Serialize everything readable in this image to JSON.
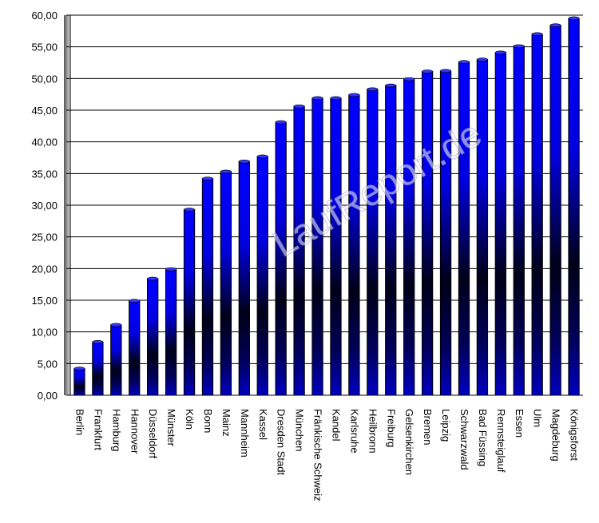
{
  "chart_data": {
    "type": "bar",
    "categories": [
      "Berlin",
      "Frankfurt",
      "Hamburg",
      "Hannover",
      "Düsseldorf",
      "Münster",
      "Köln",
      "Bonn",
      "Mainz",
      "Mannheim",
      "Kassel",
      "Dresden Stadt",
      "München",
      "Fränkische Schweiz",
      "Kandel",
      "Karlsruhe",
      "Heilbronn",
      "Freiburg",
      "Gelsenkirchen",
      "Bremen",
      "Leipzig",
      "Schwarzwald",
      "Bad Füssing",
      "Rennsteiglauf",
      "Essen",
      "Ulm",
      "Magdeburg",
      "Königsforst"
    ],
    "values": [
      4.2,
      8.4,
      11.1,
      14.9,
      18.4,
      19.9,
      29.3,
      34.2,
      35.3,
      36.9,
      37.7,
      43.1,
      45.6,
      46.9,
      46.9,
      47.4,
      48.3,
      48.9,
      49.9,
      51.1,
      51.2,
      52.6,
      53.0,
      54.1,
      55.1,
      57.0,
      58.4,
      59.5
    ],
    "color": "#0000ff",
    "ylim": [
      0,
      60
    ],
    "yticks": [
      {
        "value": 0,
        "label": "0,00"
      },
      {
        "value": 5,
        "label": "5,00"
      },
      {
        "value": 10,
        "label": "10,00"
      },
      {
        "value": 15,
        "label": "15,00"
      },
      {
        "value": 20,
        "label": "20,00"
      },
      {
        "value": 25,
        "label": "25,00"
      },
      {
        "value": 30,
        "label": "30,00"
      },
      {
        "value": 35,
        "label": "35,00"
      },
      {
        "value": 40,
        "label": "40,00"
      },
      {
        "value": 45,
        "label": "45,00"
      },
      {
        "value": 50,
        "label": "50,00"
      },
      {
        "value": 55,
        "label": "55,00"
      },
      {
        "value": 60,
        "label": "60,00"
      }
    ],
    "grid": true,
    "watermark": "LaufReport.de"
  }
}
